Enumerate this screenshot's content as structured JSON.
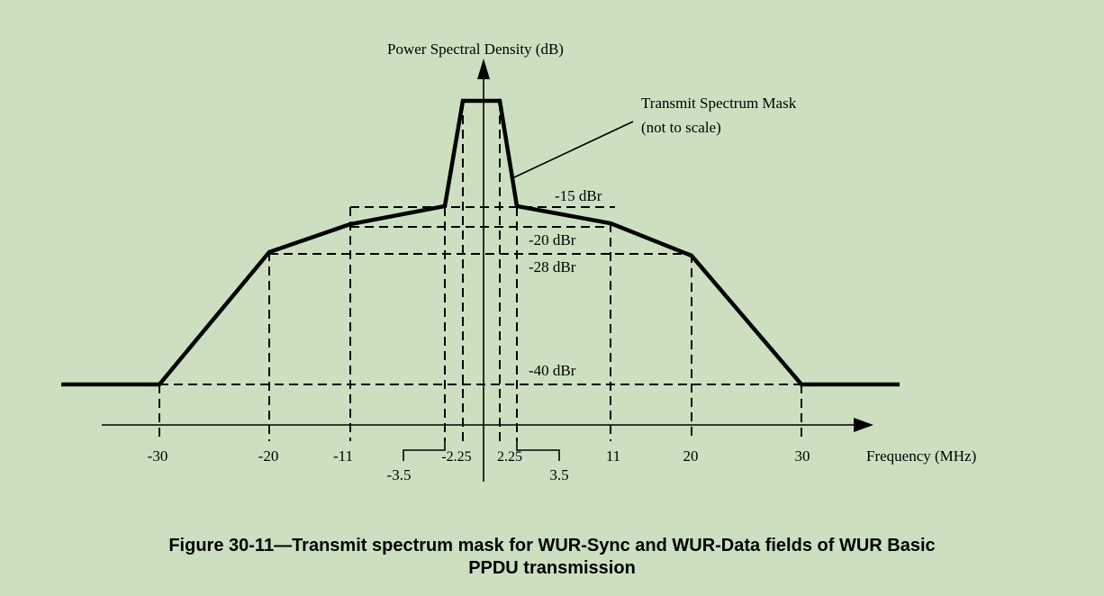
{
  "diagram": {
    "y_axis_label": "Power Spectral Density (dB)",
    "x_axis_label": "Frequency (MHz)",
    "mask_label_line1": "Transmit Spectrum Mask",
    "mask_label_line2": "(not to scale)",
    "levels": [
      {
        "label": "-15 dBr",
        "dbr": -15
      },
      {
        "label": "-20 dBr",
        "dbr": -20
      },
      {
        "label": "-28 dBr",
        "dbr": -28
      },
      {
        "label": "-40 dBr",
        "dbr": -40
      }
    ],
    "frequency_ticks": [
      "-30",
      "-20",
      "-11",
      "-3.5",
      "-2.25",
      "2.25",
      "3.5",
      "11",
      "20",
      "30"
    ]
  },
  "caption": {
    "line1": "Figure 30-11—Transmit spectrum mask for WUR-Sync and WUR-Data fields of WUR Basic",
    "line2": "PPDU transmission"
  }
}
